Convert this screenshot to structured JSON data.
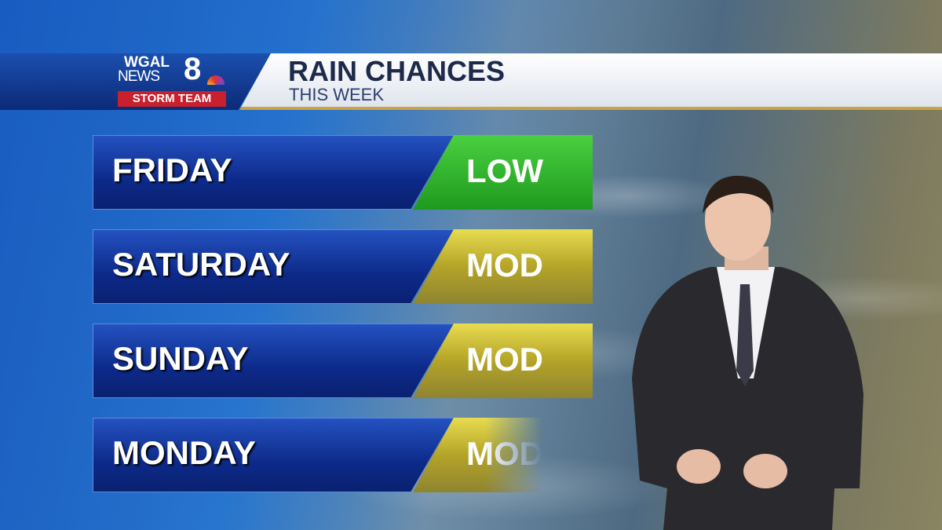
{
  "brand": {
    "line1": "WGAL",
    "line2": "NEWS",
    "number": "8",
    "badge": "STORM TEAM"
  },
  "header": {
    "title": "RAIN CHANCES",
    "subtitle": "THIS WEEK"
  },
  "rows": [
    {
      "day": "FRIDAY",
      "level": "LOW",
      "color": "#2fb42f"
    },
    {
      "day": "SATURDAY",
      "level": "MOD",
      "color": "#c8b83a"
    },
    {
      "day": "SUNDAY",
      "level": "MOD",
      "color": "#c8b83a"
    },
    {
      "day": "MONDAY",
      "level": "MOD",
      "color": "#c8b83a"
    }
  ]
}
